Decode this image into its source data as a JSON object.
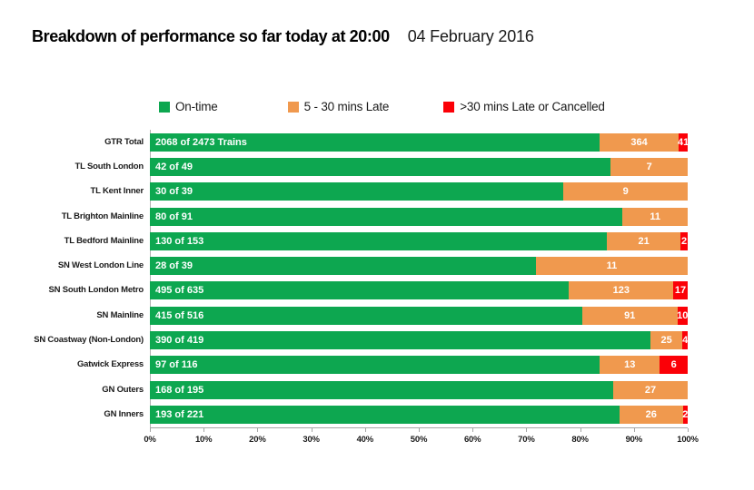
{
  "colors": {
    "ontime": "#0da750",
    "late": "#f0994e",
    "cancelled": "#fb0007",
    "axis": "#a6a6a6"
  },
  "chart_data": {
    "type": "bar",
    "orientation": "horizontal",
    "stacked": true,
    "title": "Breakdown of performance so far today at 20:00",
    "subtitle": "04 February 2016",
    "legend": [
      {
        "name": "On-time",
        "color": "#0da750"
      },
      {
        "name": "5 - 30 mins Late",
        "color": "#f0994e"
      },
      {
        "name": ">30 mins Late or Cancelled",
        "color": "#fb0007"
      }
    ],
    "xlim": [
      0,
      100
    ],
    "x_ticks": [
      "0%",
      "10%",
      "20%",
      "30%",
      "40%",
      "50%",
      "60%",
      "70%",
      "80%",
      "90%",
      "100%"
    ],
    "grid": false,
    "legend_position": "top",
    "rows": [
      {
        "label": "GTR Total",
        "ontime": 2068,
        "late": 364,
        "cancelled": 41,
        "total": 2473,
        "ontime_label": "2068 of 2473 Trains"
      },
      {
        "label": "TL South London",
        "ontime": 42,
        "late": 7,
        "cancelled": 0,
        "total": 49,
        "ontime_label": "42 of 49"
      },
      {
        "label": "TL Kent Inner",
        "ontime": 30,
        "late": 9,
        "cancelled": 0,
        "total": 39,
        "ontime_label": "30 of 39"
      },
      {
        "label": "TL Brighton Mainline",
        "ontime": 80,
        "late": 11,
        "cancelled": 0,
        "total": 91,
        "ontime_label": "80 of 91"
      },
      {
        "label": "TL Bedford Mainline",
        "ontime": 130,
        "late": 21,
        "cancelled": 2,
        "total": 153,
        "ontime_label": "130 of 153"
      },
      {
        "label": "SN West London Line",
        "ontime": 28,
        "late": 11,
        "cancelled": 0,
        "total": 39,
        "ontime_label": "28 of 39"
      },
      {
        "label": "SN South London Metro",
        "ontime": 495,
        "late": 123,
        "cancelled": 17,
        "total": 635,
        "ontime_label": "495 of 635"
      },
      {
        "label": "SN Mainline",
        "ontime": 415,
        "late": 91,
        "cancelled": 10,
        "total": 516,
        "ontime_label": "415 of 516"
      },
      {
        "label": "SN Coastway (Non-London)",
        "ontime": 390,
        "late": 25,
        "cancelled": 4,
        "total": 419,
        "ontime_label": "390 of 419"
      },
      {
        "label": "Gatwick Express",
        "ontime": 97,
        "late": 13,
        "cancelled": 6,
        "total": 116,
        "ontime_label": "97 of 116"
      },
      {
        "label": "GN Outers",
        "ontime": 168,
        "late": 27,
        "cancelled": 0,
        "total": 195,
        "ontime_label": "168 of 195"
      },
      {
        "label": "GN Inners",
        "ontime": 193,
        "late": 26,
        "cancelled": 2,
        "total": 221,
        "ontime_label": "193 of 221"
      }
    ]
  }
}
